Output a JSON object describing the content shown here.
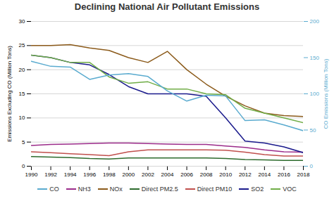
{
  "chart_data": {
    "type": "line",
    "title": "Declining National Air Pollutant Emissions",
    "x": [
      1990,
      1992,
      1994,
      1996,
      1998,
      2000,
      2002,
      2004,
      2006,
      2008,
      2010,
      2012,
      2014,
      2016,
      2018
    ],
    "xlim": [
      1990,
      2018
    ],
    "xticks": [
      1990,
      1992,
      1994,
      1996,
      1998,
      2000,
      2002,
      2004,
      2006,
      2008,
      2010,
      2012,
      2014,
      2016,
      2018
    ],
    "ylim": [
      0,
      30
    ],
    "yticks": [
      0,
      5,
      10,
      15,
      20,
      25,
      30
    ],
    "y2lim": [
      0,
      200
    ],
    "y2ticks": [
      0,
      50,
      100,
      150,
      200
    ],
    "ylabel": "Emissions Excluding CO (Million Tons)",
    "y2label": "CO Emissions (Million Tons)",
    "grid": true,
    "legend": "bottom",
    "series": [
      {
        "name": "CO",
        "color": "#5AABCF",
        "axis": "y2",
        "values": [
          145,
          138,
          137,
          120,
          126,
          128,
          124,
          104,
          90,
          98,
          97,
          63,
          64,
          57,
          49
        ]
      },
      {
        "name": "NH3",
        "color": "#9B2C8A",
        "values": [
          4.3,
          4.5,
          4.6,
          4.7,
          4.8,
          4.8,
          4.7,
          4.6,
          4.5,
          4.5,
          4.2,
          3.9,
          3.4,
          3.0,
          2.9
        ]
      },
      {
        "name": "NOx",
        "color": "#8B5A1A",
        "values": [
          25.0,
          25.0,
          25.2,
          24.5,
          24.0,
          22.5,
          21.5,
          23.8,
          20.0,
          17.0,
          14.5,
          12.5,
          11.0,
          10.5,
          10.3
        ]
      },
      {
        "name": "Direct PM2.5",
        "color": "#2D6B2D",
        "values": [
          2.0,
          1.9,
          1.8,
          1.6,
          1.5,
          1.7,
          1.7,
          1.7,
          1.7,
          1.7,
          1.6,
          1.4,
          1.3,
          1.2,
          1.2
        ]
      },
      {
        "name": "Direct PM10",
        "color": "#C0504D",
        "values": [
          3.0,
          2.8,
          2.6,
          2.4,
          2.2,
          3.0,
          3.4,
          3.4,
          3.4,
          3.4,
          3.3,
          2.9,
          2.4,
          2.1,
          2.1
        ]
      },
      {
        "name": "SO2",
        "color": "#1A1A8C",
        "values": [
          23.0,
          22.5,
          21.5,
          21.0,
          19.0,
          16.5,
          15.0,
          15.0,
          15.0,
          14.5,
          10.0,
          5.2,
          4.8,
          4.0,
          2.8
        ]
      },
      {
        "name": "VOC",
        "color": "#70AD47",
        "values": [
          23.0,
          22.5,
          21.5,
          21.5,
          18.5,
          17.2,
          17.5,
          16.0,
          16.0,
          15.0,
          14.8,
          12.0,
          11.0,
          10.0,
          9.0
        ]
      }
    ]
  }
}
